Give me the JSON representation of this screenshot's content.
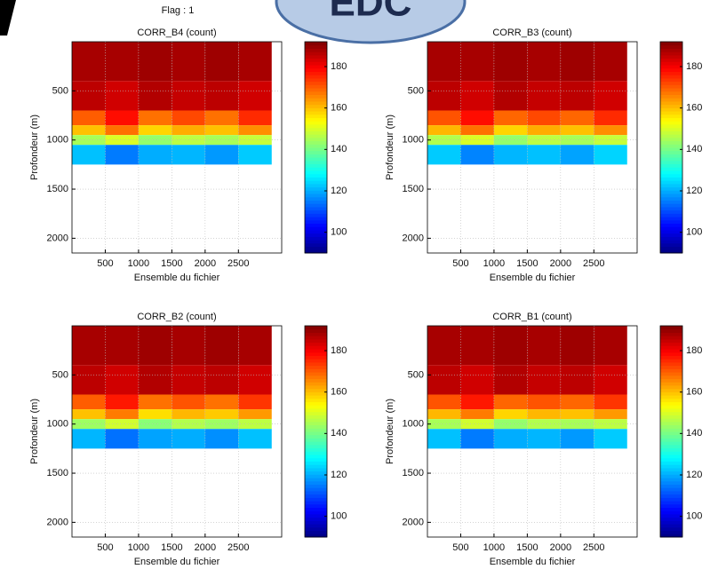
{
  "header": {
    "flag": "Flag : 1",
    "badge": "EDC"
  },
  "chart_data": [
    {
      "type": "heatmap",
      "title": "CORR_B4 (count)",
      "x_label": "Ensemble du fichier",
      "y_label": "Profondeur (m)",
      "xbins": [
        0,
        500,
        1000,
        1500,
        2000,
        2500,
        3000
      ],
      "ybins": [
        0,
        400,
        700,
        850,
        950,
        1050,
        1250,
        2150
      ],
      "z": [
        [
          188,
          188,
          189,
          188,
          189,
          188
        ],
        [
          186,
          184,
          187,
          185,
          186,
          184
        ],
        [
          170,
          178,
          168,
          172,
          168,
          175
        ],
        [
          160,
          168,
          158,
          162,
          160,
          165
        ],
        [
          145,
          150,
          143,
          147,
          145,
          148
        ],
        [
          122,
          115,
          120,
          121,
          118,
          123
        ],
        [
          null,
          null,
          null,
          null,
          null,
          null
        ]
      ],
      "xlim": [
        0,
        3150
      ],
      "ylim": [
        0,
        2150
      ],
      "y_inverted": true,
      "xticks": [
        500,
        1000,
        1500,
        2000,
        2500
      ],
      "yticks": [
        500,
        1000,
        1500,
        2000
      ],
      "clim": [
        90,
        192
      ],
      "cticks": [
        100,
        120,
        140,
        160,
        180
      ],
      "colormap": "jet",
      "grid": true
    },
    {
      "type": "heatmap",
      "title": "CORR_B3 (count)",
      "x_label": "Ensemble du fichier",
      "y_label": "Profondeur (m)",
      "xbins": [
        0,
        500,
        1000,
        1500,
        2000,
        2500,
        3000
      ],
      "ybins": [
        0,
        400,
        700,
        850,
        950,
        1050,
        1250,
        2150
      ],
      "z": [
        [
          188,
          188,
          189,
          188,
          189,
          188
        ],
        [
          186,
          184,
          187,
          185,
          186,
          184
        ],
        [
          171,
          178,
          169,
          172,
          169,
          175
        ],
        [
          161,
          168,
          158,
          162,
          160,
          165
        ],
        [
          146,
          150,
          143,
          147,
          145,
          148
        ],
        [
          123,
          116,
          121,
          122,
          119,
          124
        ],
        [
          null,
          null,
          null,
          null,
          null,
          null
        ]
      ],
      "xlim": [
        0,
        3150
      ],
      "ylim": [
        0,
        2150
      ],
      "y_inverted": true,
      "xticks": [
        500,
        1000,
        1500,
        2000,
        2500
      ],
      "yticks": [
        500,
        1000,
        1500,
        2000
      ],
      "clim": [
        90,
        192
      ],
      "cticks": [
        100,
        120,
        140,
        160,
        180
      ],
      "colormap": "jet",
      "grid": true
    },
    {
      "type": "heatmap",
      "title": "CORR_B2 (count)",
      "x_label": "Ensemble du fichier",
      "y_label": "Profondeur (m)",
      "xbins": [
        0,
        500,
        1000,
        1500,
        2000,
        2500,
        3000
      ],
      "ybins": [
        0,
        400,
        700,
        850,
        950,
        1050,
        1250,
        2150
      ],
      "z": [
        [
          188,
          188,
          189,
          188,
          189,
          188
        ],
        [
          186,
          184,
          187,
          185,
          186,
          184
        ],
        [
          170,
          177,
          168,
          171,
          168,
          174
        ],
        [
          160,
          167,
          157,
          161,
          159,
          164
        ],
        [
          144,
          149,
          142,
          146,
          144,
          147
        ],
        [
          121,
          114,
          119,
          120,
          117,
          122
        ],
        [
          null,
          null,
          null,
          null,
          null,
          null
        ]
      ],
      "xlim": [
        0,
        3150
      ],
      "ylim": [
        0,
        2150
      ],
      "y_inverted": true,
      "xticks": [
        500,
        1000,
        1500,
        2000,
        2500
      ],
      "yticks": [
        500,
        1000,
        1500,
        2000
      ],
      "clim": [
        90,
        192
      ],
      "cticks": [
        100,
        120,
        140,
        160,
        180
      ],
      "colormap": "jet",
      "grid": true
    },
    {
      "type": "heatmap",
      "title": "CORR_B1 (count)",
      "x_label": "Ensemble du fichier",
      "y_label": "Profondeur (m)",
      "xbins": [
        0,
        500,
        1000,
        1500,
        2000,
        2500,
        3000
      ],
      "ybins": [
        0,
        400,
        700,
        850,
        950,
        1050,
        1250,
        2150
      ],
      "z": [
        [
          188,
          188,
          189,
          188,
          189,
          188
        ],
        [
          186,
          184,
          187,
          185,
          186,
          184
        ],
        [
          171,
          177,
          169,
          171,
          169,
          174
        ],
        [
          161,
          167,
          158,
          161,
          160,
          164
        ],
        [
          145,
          149,
          143,
          146,
          145,
          147
        ],
        [
          122,
          115,
          120,
          121,
          118,
          123
        ],
        [
          null,
          null,
          null,
          null,
          null,
          null
        ]
      ],
      "xlim": [
        0,
        3150
      ],
      "ylim": [
        0,
        2150
      ],
      "y_inverted": true,
      "xticks": [
        500,
        1000,
        1500,
        2000,
        2500
      ],
      "yticks": [
        500,
        1000,
        1500,
        2000
      ],
      "clim": [
        90,
        192
      ],
      "cticks": [
        100,
        120,
        140,
        160,
        180
      ],
      "colormap": "jet",
      "grid": true
    }
  ]
}
